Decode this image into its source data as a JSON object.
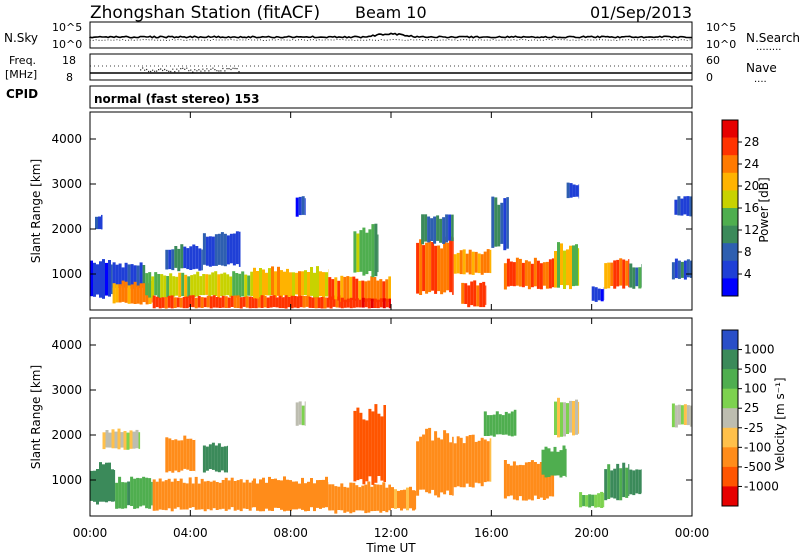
{
  "header": {
    "station": "Zhongshan Station (fitACF)",
    "beam": "Beam 10",
    "date": "01/Sep/2013"
  },
  "panels": {
    "nsky": {
      "left_label": "N.Sky",
      "left_ticks": [
        "10^5",
        "10^0"
      ],
      "right_ticks": [
        "10^5",
        "10^0"
      ],
      "right_label": "N.Search",
      "right_line": "........"
    },
    "freq": {
      "left_label_1": "Freq.",
      "left_label_2": "[MHz]",
      "left_ticks": [
        "18",
        "8"
      ],
      "right_ticks": [
        "60",
        "0"
      ],
      "right_label": "Nave",
      "right_line": "....",
      "cpid_label": "CPID"
    },
    "cpid": {
      "text": "normal (fast stereo) 153"
    }
  },
  "colorbars": {
    "power": {
      "title": "Power [dB]",
      "ticks": [
        "28",
        "24",
        "20",
        "16",
        "12",
        "8",
        "4"
      ],
      "colors": [
        "#e60000",
        "#ff3300",
        "#ff7a00",
        "#ffb300",
        "#c8d200",
        "#4fae4f",
        "#3b8a5a",
        "#2e5fb0",
        "#1f3fd6",
        "#0000ff"
      ]
    },
    "velocity": {
      "title": "Velocity [m s⁻¹]",
      "ticks": [
        "1000",
        "500",
        "100",
        "25",
        "-25",
        "-100",
        "-500",
        "-1000"
      ],
      "colors": [
        "#2a4fc8",
        "#3b8a5a",
        "#4fae4f",
        "#7dd24f",
        "#bdbdb0",
        "#ffc04a",
        "#ff8c1a",
        "#ff5500",
        "#e60000"
      ]
    }
  },
  "chart_data": [
    {
      "type": "heatmap",
      "name": "power",
      "ylabel": "Slant Range [km]",
      "yticks": [
        "1000",
        "2000",
        "3000",
        "4000"
      ],
      "ylim": [
        200,
        4600
      ],
      "xlim": [
        0,
        24
      ],
      "colorbar": "Power [dB]",
      "clim": [
        0,
        30
      ],
      "cells": [
        {
          "t0": 0.0,
          "t1": 0.9,
          "r0": 500,
          "r1": 1300,
          "v": 6
        },
        {
          "t0": 0.2,
          "t1": 0.5,
          "r0": 2000,
          "r1": 2300,
          "v": 7
        },
        {
          "t0": 0.9,
          "t1": 2.2,
          "r0": 700,
          "r1": 1200,
          "v": 8
        },
        {
          "t0": 0.9,
          "t1": 2.5,
          "r0": 350,
          "r1": 800,
          "v": 22
        },
        {
          "t0": 2.2,
          "t1": 6.5,
          "r0": 500,
          "r1": 1000,
          "v": 17
        },
        {
          "t0": 2.5,
          "t1": 6.8,
          "r0": 250,
          "r1": 500,
          "v": 26
        },
        {
          "t0": 3.0,
          "t1": 4.5,
          "r0": 1100,
          "r1": 1600,
          "v": 9
        },
        {
          "t0": 4.5,
          "t1": 6.0,
          "r0": 1200,
          "r1": 1900,
          "v": 7
        },
        {
          "t0": 6.5,
          "t1": 9.5,
          "r0": 500,
          "r1": 1100,
          "v": 20
        },
        {
          "t0": 6.8,
          "t1": 10.0,
          "r0": 250,
          "r1": 500,
          "v": 27
        },
        {
          "t0": 8.2,
          "t1": 8.6,
          "r0": 2300,
          "r1": 2700,
          "v": 6
        },
        {
          "t0": 9.5,
          "t1": 12.0,
          "r0": 400,
          "r1": 900,
          "v": 24
        },
        {
          "t0": 10.0,
          "t1": 12.0,
          "r0": 250,
          "r1": 450,
          "v": 28
        },
        {
          "t0": 10.5,
          "t1": 11.5,
          "r0": 1000,
          "r1": 2000,
          "v": 14
        },
        {
          "t0": 13.0,
          "t1": 14.5,
          "r0": 600,
          "r1": 1700,
          "v": 26
        },
        {
          "t0": 13.2,
          "t1": 14.5,
          "r0": 1700,
          "r1": 2300,
          "v": 10
        },
        {
          "t0": 14.5,
          "t1": 16.0,
          "r0": 1000,
          "r1": 1500,
          "v": 22
        },
        {
          "t0": 14.8,
          "t1": 15.8,
          "r0": 300,
          "r1": 800,
          "v": 27
        },
        {
          "t0": 16.0,
          "t1": 16.7,
          "r0": 1600,
          "r1": 2600,
          "v": 8
        },
        {
          "t0": 16.5,
          "t1": 18.5,
          "r0": 700,
          "r1": 1300,
          "v": 25
        },
        {
          "t0": 18.5,
          "t1": 19.5,
          "r0": 700,
          "r1": 1600,
          "v": 18
        },
        {
          "t0": 19.0,
          "t1": 19.5,
          "r0": 2700,
          "r1": 3000,
          "v": 7
        },
        {
          "t0": 20.0,
          "t1": 20.5,
          "r0": 400,
          "r1": 700,
          "v": 6
        },
        {
          "t0": 20.5,
          "t1": 21.5,
          "r0": 700,
          "r1": 1300,
          "v": 24
        },
        {
          "t0": 21.5,
          "t1": 22.0,
          "r0": 700,
          "r1": 1200,
          "v": 12
        },
        {
          "t0": 23.2,
          "t1": 24.0,
          "r0": 900,
          "r1": 1300,
          "v": 8
        },
        {
          "t0": 23.3,
          "t1": 24.0,
          "r0": 2300,
          "r1": 2700,
          "v": 7
        }
      ]
    },
    {
      "type": "heatmap",
      "name": "velocity",
      "ylabel": "Slant Range [km]",
      "yticks": [
        "1000",
        "2000",
        "3000",
        "4000"
      ],
      "ylim": [
        200,
        4600
      ],
      "xlim": [
        0,
        24
      ],
      "colorbar": "Velocity [m s⁻¹]",
      "clim": [
        -1000,
        1000
      ],
      "cells": [
        {
          "t0": 0.0,
          "t1": 1.0,
          "r0": 500,
          "r1": 1300,
          "v": 300
        },
        {
          "t0": 0.5,
          "t1": 2.0,
          "r0": 1700,
          "r1": 2100,
          "v": 0
        },
        {
          "t0": 1.0,
          "t1": 2.5,
          "r0": 400,
          "r1": 1000,
          "v": 200
        },
        {
          "t0": 2.5,
          "t1": 6.5,
          "r0": 350,
          "r1": 1000,
          "v": -250
        },
        {
          "t0": 3.0,
          "t1": 4.2,
          "r0": 1200,
          "r1": 1900,
          "v": -300
        },
        {
          "t0": 4.5,
          "t1": 5.5,
          "r0": 1200,
          "r1": 1800,
          "v": 300
        },
        {
          "t0": 6.5,
          "t1": 9.5,
          "r0": 350,
          "r1": 1000,
          "v": -200
        },
        {
          "t0": 8.2,
          "t1": 8.6,
          "r0": 2200,
          "r1": 2700,
          "v": 0
        },
        {
          "t0": 9.5,
          "t1": 12.0,
          "r0": 300,
          "r1": 900,
          "v": -200
        },
        {
          "t0": 10.5,
          "t1": 11.8,
          "r0": 1000,
          "r1": 2500,
          "v": -600
        },
        {
          "t0": 12.0,
          "t1": 13.0,
          "r0": 350,
          "r1": 800,
          "v": -150
        },
        {
          "t0": 13.0,
          "t1": 14.5,
          "r0": 700,
          "r1": 2000,
          "v": -200
        },
        {
          "t0": 14.5,
          "t1": 16.0,
          "r0": 900,
          "r1": 1900,
          "v": -150
        },
        {
          "t0": 15.7,
          "t1": 17.0,
          "r0": 2000,
          "r1": 2500,
          "v": 200
        },
        {
          "t0": 16.5,
          "t1": 18.5,
          "r0": 600,
          "r1": 1400,
          "v": -200
        },
        {
          "t0": 18.0,
          "t1": 19.0,
          "r0": 1100,
          "r1": 1700,
          "v": 150
        },
        {
          "t0": 18.5,
          "t1": 19.5,
          "r0": 2000,
          "r1": 2800,
          "v": 0
        },
        {
          "t0": 19.5,
          "t1": 20.5,
          "r0": 400,
          "r1": 700,
          "v": 80
        },
        {
          "t0": 20.5,
          "t1": 21.5,
          "r0": 600,
          "r1": 1300,
          "v": 250
        },
        {
          "t0": 21.5,
          "t1": 22.0,
          "r0": 700,
          "r1": 1200,
          "v": 300
        },
        {
          "t0": 23.2,
          "t1": 24.0,
          "r0": 2200,
          "r1": 2700,
          "v": 0
        }
      ]
    }
  ],
  "xaxis": {
    "ticks": [
      "00:00",
      "04:00",
      "08:00",
      "12:00",
      "16:00",
      "20:00",
      "00:00"
    ],
    "label": "Time UT"
  }
}
